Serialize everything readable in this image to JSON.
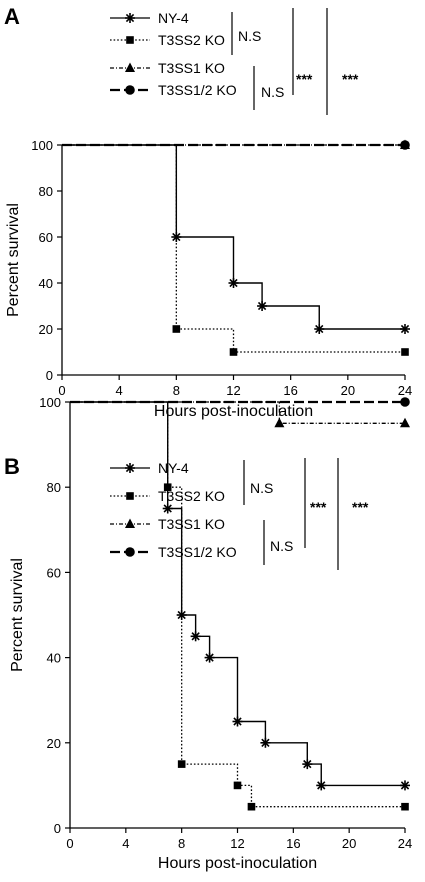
{
  "chart_data": [
    {
      "panel_label": "A",
      "type": "line",
      "step": true,
      "xlabel": "Hours post-inoculation",
      "ylabel": "Percent survival",
      "xlim": [
        0,
        24
      ],
      "ylim": [
        0,
        100
      ],
      "xticks": [
        "0",
        "4",
        "8",
        "12",
        "16",
        "20",
        "24"
      ],
      "yticks": [
        "0",
        "20",
        "40",
        "60",
        "80",
        "100"
      ],
      "series": [
        {
          "name": "NY-4",
          "marker": "asterisk",
          "line": "solid",
          "x": [
            0,
            8,
            12,
            14,
            18,
            24
          ],
          "y": [
            100,
            60,
            40,
            30,
            20,
            20
          ]
        },
        {
          "name": "T3SS2 KO",
          "marker": "square",
          "line": "dotted",
          "x": [
            0,
            8,
            12,
            24
          ],
          "y": [
            100,
            20,
            10,
            10
          ]
        },
        {
          "name": "T3SS1 KO",
          "marker": "triangle",
          "line": "dash-dot",
          "x": [
            0,
            24
          ],
          "y": [
            100,
            100
          ]
        },
        {
          "name": "T3SS1/2 KO",
          "marker": "circle",
          "line": "dashed",
          "x": [
            0,
            24
          ],
          "y": [
            100,
            100
          ]
        }
      ],
      "significance": {
        "inner_top": "N.S",
        "inner_bottom": "N.S",
        "middle": "***",
        "outer": "***"
      }
    },
    {
      "panel_label": "B",
      "type": "line",
      "step": true,
      "xlabel": "Hours post-inoculation",
      "ylabel": "Percent survival",
      "xlim": [
        0,
        24
      ],
      "ylim": [
        0,
        100
      ],
      "xticks": [
        "0",
        "4",
        "8",
        "12",
        "16",
        "20",
        "24"
      ],
      "yticks": [
        "0",
        "20",
        "40",
        "60",
        "80",
        "100"
      ],
      "series": [
        {
          "name": "NY-4",
          "marker": "asterisk",
          "line": "solid",
          "x": [
            0,
            7,
            8,
            9,
            10,
            12,
            14,
            17,
            18,
            24
          ],
          "y": [
            100,
            75,
            50,
            45,
            40,
            25,
            20,
            15,
            10,
            10
          ]
        },
        {
          "name": "T3SS2 KO",
          "marker": "square",
          "line": "dotted",
          "x": [
            0,
            7,
            8,
            12,
            13,
            24
          ],
          "y": [
            100,
            80,
            15,
            10,
            5,
            5
          ]
        },
        {
          "name": "T3SS1 KO",
          "marker": "triangle",
          "line": "dash-dot",
          "x": [
            0,
            15,
            24
          ],
          "y": [
            100,
            95,
            95
          ]
        },
        {
          "name": "T3SS1/2 KO",
          "marker": "circle",
          "line": "dashed",
          "x": [
            0,
            24
          ],
          "y": [
            100,
            100
          ]
        }
      ],
      "significance": {
        "inner_top": "N.S",
        "inner_bottom": "N.S",
        "middle": "***",
        "outer": "***"
      }
    }
  ]
}
